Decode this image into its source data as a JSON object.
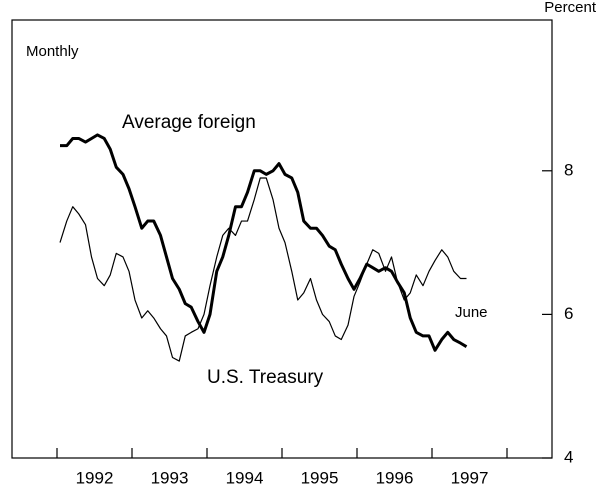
{
  "chart_data": {
    "type": "line",
    "subtitle": "Monthly",
    "y_axis_label": "Percent",
    "annotations": [
      "Average foreign",
      "U.S. Treasury",
      "June"
    ],
    "x": [
      1992.04,
      1992.13,
      1992.21,
      1992.29,
      1992.38,
      1992.46,
      1992.54,
      1992.63,
      1992.71,
      1992.79,
      1992.88,
      1992.96,
      1993.04,
      1993.13,
      1993.21,
      1993.29,
      1993.38,
      1993.46,
      1993.54,
      1993.63,
      1993.71,
      1993.79,
      1993.88,
      1993.96,
      1994.04,
      1994.13,
      1994.21,
      1994.29,
      1994.38,
      1994.46,
      1994.54,
      1994.63,
      1994.71,
      1994.79,
      1994.88,
      1994.96,
      1995.04,
      1995.13,
      1995.21,
      1995.29,
      1995.38,
      1995.46,
      1995.54,
      1995.63,
      1995.71,
      1995.79,
      1995.88,
      1995.96,
      1996.04,
      1996.13,
      1996.21,
      1996.29,
      1996.38,
      1996.46,
      1996.54,
      1996.63,
      1996.71,
      1996.79,
      1996.88,
      1996.96,
      1997.04,
      1997.13,
      1997.21,
      1997.29,
      1997.38,
      1997.46
    ],
    "series": [
      {
        "name": "Average foreign",
        "color": "#000000",
        "line_width": 3,
        "values": [
          8.35,
          8.35,
          8.45,
          8.45,
          8.4,
          8.45,
          8.5,
          8.45,
          8.3,
          8.05,
          7.95,
          7.75,
          7.5,
          7.2,
          7.3,
          7.3,
          7.1,
          6.8,
          6.5,
          6.35,
          6.15,
          6.1,
          5.9,
          5.75,
          6.0,
          6.6,
          6.8,
          7.1,
          7.5,
          7.5,
          7.7,
          8.0,
          8.0,
          7.95,
          8.0,
          8.1,
          7.95,
          7.9,
          7.7,
          7.3,
          7.2,
          7.2,
          7.1,
          6.95,
          6.9,
          6.7,
          6.5,
          6.35,
          6.5,
          6.7,
          6.65,
          6.6,
          6.65,
          6.6,
          6.45,
          6.3,
          5.95,
          5.75,
          5.7,
          5.7,
          5.5,
          5.65,
          5.75,
          5.65,
          5.6,
          5.55
        ]
      },
      {
        "name": "U.S. Treasury",
        "color": "#000000",
        "line_width": 1.2,
        "values": [
          7.0,
          7.3,
          7.5,
          7.4,
          7.25,
          6.8,
          6.5,
          6.4,
          6.55,
          6.85,
          6.8,
          6.6,
          6.2,
          5.95,
          6.05,
          5.95,
          5.8,
          5.7,
          5.4,
          5.35,
          5.7,
          5.75,
          5.8,
          6.0,
          6.4,
          6.8,
          7.1,
          7.2,
          7.1,
          7.3,
          7.3,
          7.6,
          7.9,
          7.9,
          7.6,
          7.2,
          7.0,
          6.6,
          6.2,
          6.3,
          6.5,
          6.2,
          6.0,
          5.9,
          5.7,
          5.65,
          5.85,
          6.25,
          6.45,
          6.7,
          6.9,
          6.85,
          6.6,
          6.8,
          6.45,
          6.2,
          6.3,
          6.55,
          6.4,
          6.6,
          6.75,
          6.9,
          6.8,
          6.6,
          6.5,
          6.5
        ]
      }
    ],
    "xlim": [
      1991.4,
      1998.6
    ],
    "xtick_marks": [
      1992,
      1993,
      1994,
      1995,
      1996,
      1997,
      1998
    ],
    "xticks": [
      {
        "value": 1992.5,
        "label": "1992"
      },
      {
        "value": 1993.5,
        "label": "1993"
      },
      {
        "value": 1994.5,
        "label": "1994"
      },
      {
        "value": 1995.5,
        "label": "1995"
      },
      {
        "value": 1996.5,
        "label": "1996"
      },
      {
        "value": 1997.5,
        "label": "1997"
      }
    ],
    "ylim": [
      4,
      10.1
    ],
    "yticks": [
      4,
      6,
      8
    ],
    "y_axis_side": "right",
    "grid": false
  }
}
